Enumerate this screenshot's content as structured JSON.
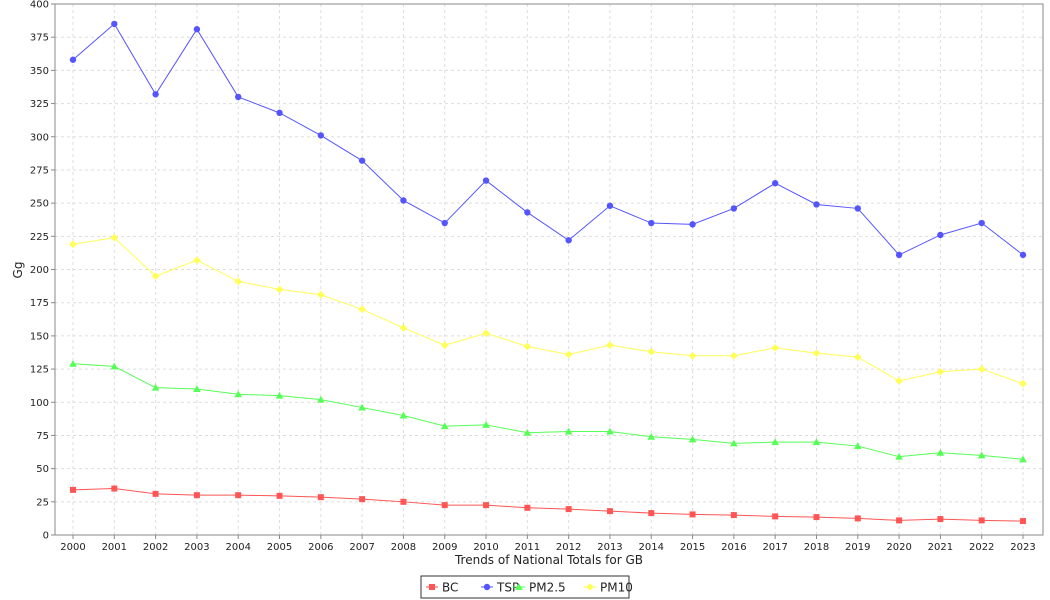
{
  "chart_data": {
    "type": "line",
    "title": "",
    "xlabel": "Trends of National Totals for GB",
    "ylabel": "Gg",
    "ylim": [
      0,
      400
    ],
    "yticks": [
      0,
      25,
      50,
      75,
      100,
      125,
      150,
      175,
      200,
      225,
      250,
      275,
      300,
      325,
      350,
      375,
      400
    ],
    "grid": true,
    "legend_position": "bottom-center",
    "x": [
      "2000",
      "2001",
      "2002",
      "2003",
      "2004",
      "2005",
      "2006",
      "2007",
      "2008",
      "2009",
      "2010",
      "2011",
      "2012",
      "2013",
      "2014",
      "2015",
      "2016",
      "2017",
      "2018",
      "2019",
      "2020",
      "2021",
      "2022",
      "2023"
    ],
    "series": [
      {
        "name": "BC",
        "color": "#ff5555",
        "marker": "square",
        "values": [
          34,
          35,
          31,
          30,
          30,
          29.5,
          28.5,
          27,
          25,
          22.5,
          22.5,
          20.5,
          19.5,
          18,
          16.5,
          15.5,
          15,
          14,
          13.5,
          12.5,
          11,
          12,
          11,
          10.5
        ]
      },
      {
        "name": "TSP",
        "color": "#5555ff",
        "marker": "circle",
        "values": [
          358,
          385,
          332,
          381,
          330,
          318,
          301,
          282,
          252,
          235,
          267,
          243,
          222,
          248,
          235,
          234,
          246,
          265,
          249,
          246,
          211,
          226,
          235,
          211
        ]
      },
      {
        "name": "PM2.5",
        "color": "#55ff55",
        "marker": "triangle",
        "values": [
          129,
          127,
          111,
          110,
          106,
          105,
          102,
          96,
          90,
          82,
          83,
          77,
          78,
          78,
          74,
          72,
          69,
          70,
          70,
          67,
          59,
          62,
          60,
          57
        ]
      },
      {
        "name": "PM10",
        "color": "#ffff55",
        "marker": "diamond",
        "values": [
          219,
          224,
          195,
          207,
          191,
          185,
          181,
          170,
          156,
          143,
          152,
          142,
          136,
          143,
          138,
          135,
          135,
          141,
          137,
          134,
          116,
          123,
          125,
          114
        ]
      }
    ]
  }
}
